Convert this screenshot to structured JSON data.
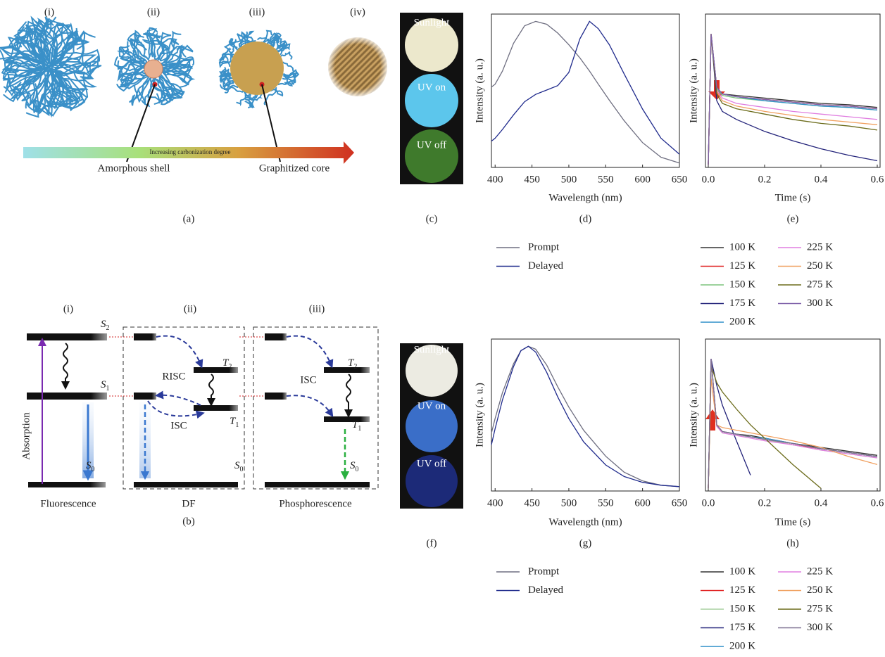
{
  "panel_a": {
    "stages": [
      "(i)",
      "(ii)",
      "(iii)",
      "(iv)"
    ],
    "shell": "Amorphous shell",
    "core": "Graphitized core",
    "arrow": "Increasing carbonization degree",
    "caption": "(a)"
  },
  "panel_b": {
    "columns": [
      "(i)",
      "(ii)",
      "(iii)"
    ],
    "names": [
      "Fluorescence",
      "DF",
      "Phosphorescence"
    ],
    "caption": "(b)",
    "absorption": "Absorption",
    "risc": "RISC",
    "isc": [
      "ISC",
      "ISC"
    ],
    "states": [
      {
        "letter": "S",
        "sub": "2"
      },
      {
        "letter": "S",
        "sub": "1"
      },
      {
        "letter": "S",
        "sub": "0"
      },
      {
        "letter": "T",
        "sub": "2"
      },
      {
        "letter": "T",
        "sub": "1"
      },
      {
        "letter": "S",
        "sub": "0"
      },
      {
        "letter": "T",
        "sub": "2"
      },
      {
        "letter": "T",
        "sub": "1"
      },
      {
        "letter": "S",
        "sub": "0"
      }
    ]
  },
  "panel_c": {
    "photos": [
      "Sunlight",
      "UV on",
      "UV off"
    ],
    "caption": "(c)"
  },
  "panel_f": {
    "photos": [
      "Sunlight",
      "UV on",
      "UV off"
    ],
    "caption": "(f)"
  },
  "chart_data": [
    {
      "type": "line",
      "caption": "(d)",
      "x_label": "Wavelength (nm)",
      "y_label": "Intensity (a. u.)",
      "x": [
        395,
        400,
        410,
        425,
        440,
        455,
        470,
        485,
        500,
        515,
        528,
        540,
        555,
        575,
        600,
        625,
        650
      ],
      "series": [
        {
          "name": "Prompt",
          "color": "#6e6e80",
          "values": [
            0.55,
            0.57,
            0.66,
            0.85,
            0.97,
            1.0,
            0.98,
            0.92,
            0.84,
            0.75,
            0.66,
            0.57,
            0.46,
            0.32,
            0.17,
            0.07,
            0.03
          ]
        },
        {
          "name": "Delayed",
          "color": "#1f2a8c",
          "values": [
            0.18,
            0.2,
            0.26,
            0.36,
            0.45,
            0.5,
            0.53,
            0.56,
            0.65,
            0.88,
            1.0,
            0.95,
            0.84,
            0.64,
            0.4,
            0.2,
            0.09
          ]
        }
      ],
      "xlim": [
        395,
        650
      ],
      "xticks": [
        400,
        450,
        500,
        550,
        600,
        650
      ],
      "ylim": [
        0,
        1.05
      ]
    },
    {
      "type": "line",
      "caption": "(e)",
      "x_label": "Time (s)",
      "y_label": "Intensity (a. u.)",
      "x": [
        0.0,
        0.01,
        0.03,
        0.05,
        0.1,
        0.2,
        0.3,
        0.4,
        0.5,
        0.6
      ],
      "series": [
        {
          "name": "100 K",
          "color": "#333333",
          "values": [
            0.02,
            1.0,
            0.6,
            0.55,
            0.54,
            0.52,
            0.5,
            0.48,
            0.47,
            0.45
          ]
        },
        {
          "name": "125 K",
          "color": "#e02020",
          "values": [
            0.02,
            1.0,
            0.6,
            0.55,
            0.53,
            0.51,
            0.49,
            0.47,
            0.46,
            0.44
          ]
        },
        {
          "name": "150 K",
          "color": "#7cc47c",
          "values": [
            0.02,
            1.0,
            0.59,
            0.54,
            0.52,
            0.5,
            0.48,
            0.46,
            0.45,
            0.43
          ]
        },
        {
          "name": "175 K",
          "color": "#23237a",
          "values": [
            0.02,
            1.0,
            0.5,
            0.42,
            0.36,
            0.27,
            0.2,
            0.14,
            0.09,
            0.05
          ]
        },
        {
          "name": "200 K",
          "color": "#2f8fc9",
          "values": [
            0.02,
            1.0,
            0.6,
            0.55,
            0.53,
            0.5,
            0.48,
            0.46,
            0.45,
            0.43
          ]
        },
        {
          "name": "225 K",
          "color": "#e07ee0",
          "values": [
            0.02,
            1.0,
            0.58,
            0.52,
            0.48,
            0.45,
            0.42,
            0.4,
            0.38,
            0.36
          ]
        },
        {
          "name": "250 K",
          "color": "#f0a060",
          "values": [
            0.02,
            1.0,
            0.57,
            0.5,
            0.46,
            0.42,
            0.39,
            0.36,
            0.34,
            0.32
          ]
        },
        {
          "name": "275 K",
          "color": "#6b6b1a",
          "values": [
            0.02,
            1.0,
            0.55,
            0.48,
            0.44,
            0.4,
            0.36,
            0.33,
            0.31,
            0.28
          ]
        },
        {
          "name": "300 K",
          "color": "#7d5fa8",
          "values": [
            0.02,
            1.0,
            0.6,
            0.55,
            0.53,
            0.51,
            0.49,
            0.47,
            0.46,
            0.44
          ]
        }
      ],
      "xlim": [
        -0.01,
        0.61
      ],
      "xticks": [
        {
          "value": 0,
          "label": "0.0"
        },
        0.2,
        0.4,
        0.6
      ],
      "ylim": [
        0,
        1.15
      ]
    },
    {
      "type": "line",
      "caption": "(g)",
      "x_label": "Wavelength (nm)",
      "y_label": "Intensity (a. u.)",
      "x": [
        395,
        400,
        410,
        425,
        435,
        445,
        455,
        470,
        485,
        500,
        520,
        550,
        575,
        600,
        625,
        650
      ],
      "series": [
        {
          "name": "Prompt",
          "color": "#6e6e80",
          "values": [
            0.4,
            0.5,
            0.68,
            0.88,
            0.97,
            1.0,
            0.98,
            0.87,
            0.72,
            0.58,
            0.42,
            0.24,
            0.13,
            0.07,
            0.04,
            0.03
          ]
        },
        {
          "name": "Delayed",
          "color": "#1f2a8c",
          "values": [
            0.32,
            0.43,
            0.63,
            0.86,
            0.97,
            1.0,
            0.96,
            0.82,
            0.65,
            0.5,
            0.34,
            0.18,
            0.1,
            0.06,
            0.04,
            0.03
          ]
        }
      ],
      "xlim": [
        395,
        650
      ],
      "xticks": [
        400,
        450,
        500,
        550,
        600,
        650
      ],
      "ylim": [
        0,
        1.05
      ]
    },
    {
      "type": "line",
      "caption": "(h)",
      "x_label": "Time (s)",
      "y_label": "Intensity (a. u.)",
      "x": [
        0.0,
        0.01,
        0.03,
        0.05,
        0.1,
        0.15,
        0.2,
        0.3,
        0.4,
        0.5,
        0.6
      ],
      "series": [
        {
          "name": "100 K",
          "color": "#333333",
          "values": [
            0.02,
            1.0,
            0.5,
            0.45,
            0.43,
            0.42,
            0.4,
            0.36,
            0.33,
            0.3,
            0.27
          ]
        },
        {
          "name": "125 K",
          "color": "#e02020",
          "values": [
            0.02,
            1.0,
            0.5,
            0.45,
            0.43,
            0.41,
            0.39,
            0.35,
            0.32,
            0.29,
            0.26
          ]
        },
        {
          "name": "150 K",
          "color": "#a8d0a0",
          "values": [
            0.02,
            1.0,
            0.49,
            0.44,
            0.42,
            0.41,
            0.39,
            0.35,
            0.31,
            0.28,
            0.25
          ]
        },
        {
          "name": "175 K",
          "color": "#23237a",
          "values": [
            0.02,
            1.0,
            0.8,
            0.65,
            0.38,
            0.12,
            null,
            null,
            null,
            null,
            null
          ]
        },
        {
          "name": "200 K",
          "color": "#2f8fc9",
          "values": [
            0.02,
            1.0,
            0.5,
            0.45,
            0.43,
            0.41,
            0.4,
            0.36,
            0.32,
            0.29,
            0.26
          ]
        },
        {
          "name": "225 K",
          "color": "#e07ee0",
          "values": [
            0.02,
            1.0,
            0.49,
            0.44,
            0.42,
            0.4,
            0.38,
            0.35,
            0.31,
            0.28,
            0.25
          ]
        },
        {
          "name": "250 K",
          "color": "#f0a060",
          "values": [
            0.02,
            0.85,
            0.5,
            0.48,
            0.46,
            0.44,
            0.42,
            0.38,
            0.33,
            0.26,
            0.2
          ]
        },
        {
          "name": "275 K",
          "color": "#6b6b1a",
          "values": [
            0.02,
            0.95,
            0.82,
            0.75,
            0.62,
            0.5,
            0.4,
            0.2,
            0.02,
            null,
            null
          ]
        },
        {
          "name": "300 K",
          "color": "#7d6f90",
          "values": [
            0.02,
            1.0,
            0.5,
            0.45,
            0.43,
            0.41,
            0.39,
            0.36,
            0.32,
            0.29,
            0.26
          ]
        }
      ],
      "xlim": [
        -0.01,
        0.61
      ],
      "xticks": [
        {
          "value": 0,
          "label": "0.0"
        },
        0.2,
        0.4,
        0.6
      ],
      "ylim": [
        0,
        1.15
      ]
    }
  ]
}
